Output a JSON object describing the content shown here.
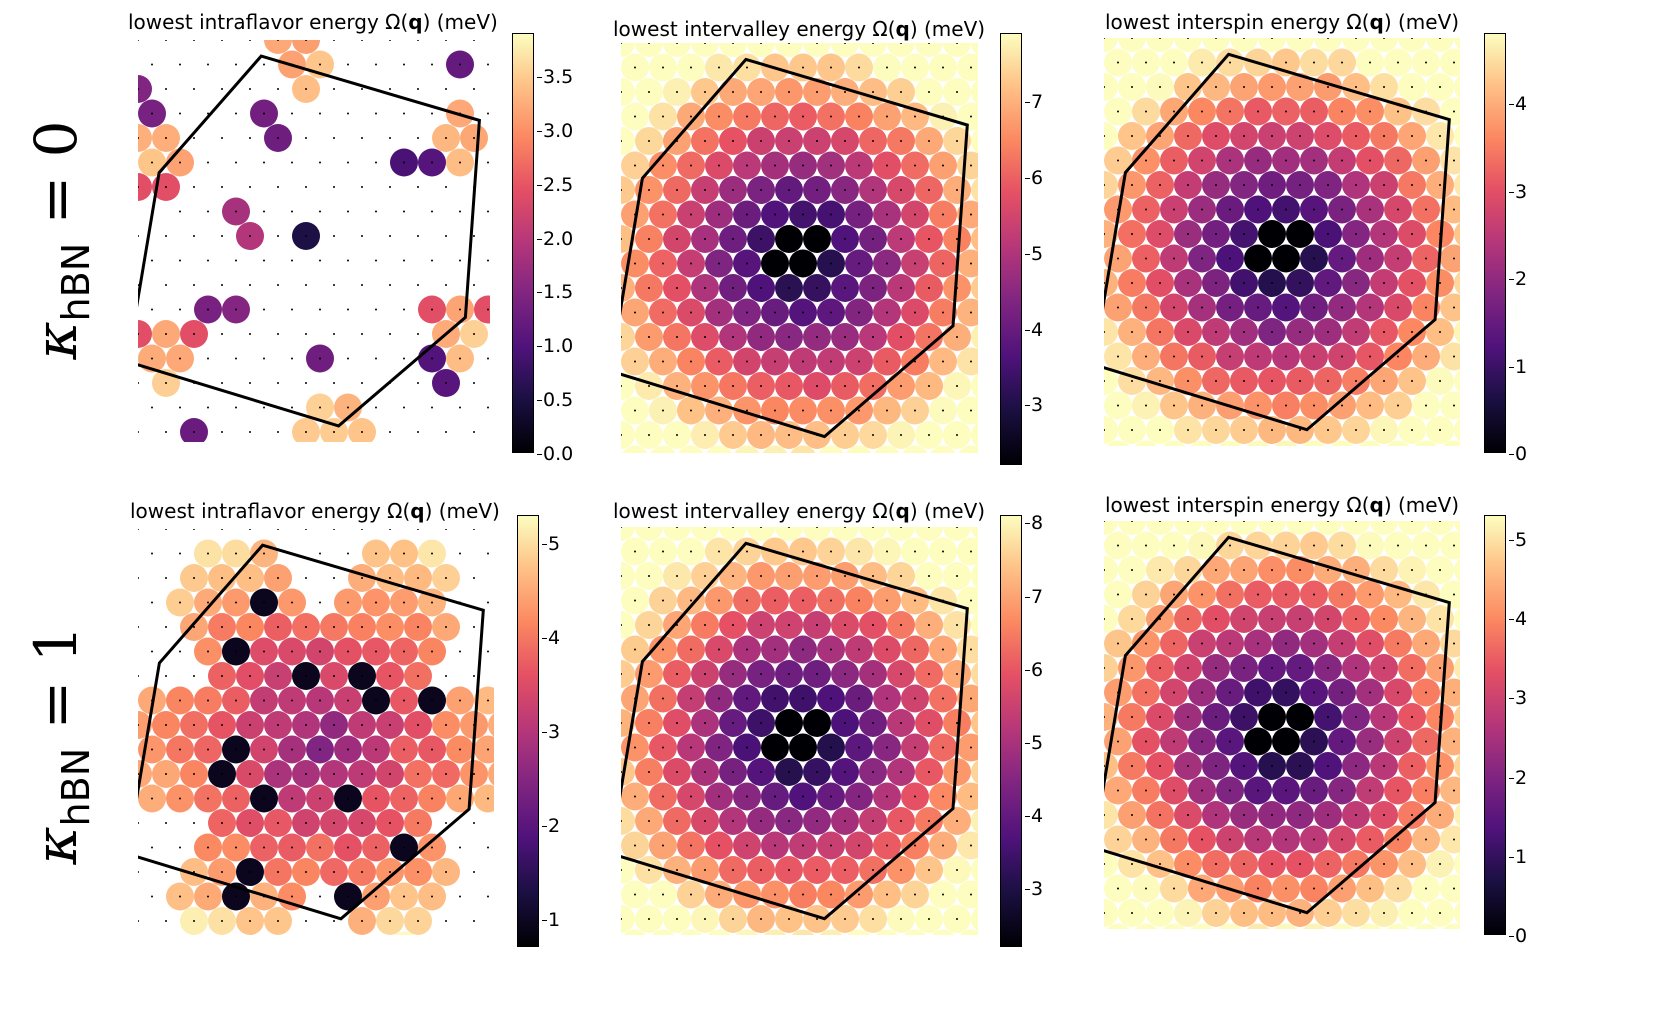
{
  "row_labels": [
    {
      "kappa": "κ",
      "sub": "hBN",
      "eq": " = 0"
    },
    {
      "kappa": "κ",
      "sub": "hBN",
      "eq": " = 1"
    }
  ],
  "title_parts": {
    "pre": "lowest ",
    "mid": " energy Ω(",
    "bold": "q",
    "post": ") (meV)"
  },
  "colormap": "magma",
  "chart_data": [
    {
      "type": "heatmap",
      "row": 0,
      "col": 0,
      "title": "lowest intraflavor energy Ω(q) (meV)",
      "kind": "intraflavor",
      "pattern": "intraflavor-sparse",
      "colorbar": {
        "min": 0.0,
        "max": 3.9,
        "ticks": [
          0.0,
          0.5,
          1.0,
          1.5,
          2.0,
          2.5,
          3.0,
          3.5
        ],
        "tick_labels": [
          "0.0",
          "0.5",
          "1.0",
          "1.5",
          "2.0",
          "2.5",
          "3.0",
          "3.5"
        ]
      }
    },
    {
      "type": "heatmap",
      "row": 0,
      "col": 1,
      "title": "lowest intervalley energy Ω(q) (meV)",
      "kind": "intervalley",
      "pattern": "radial",
      "colorbar": {
        "min": 2.2,
        "max": 7.9,
        "ticks": [
          3,
          4,
          5,
          6,
          7
        ],
        "tick_labels": [
          "3",
          "4",
          "5",
          "6",
          "7"
        ]
      }
    },
    {
      "type": "heatmap",
      "row": 0,
      "col": 2,
      "title": "lowest interspin energy Ω(q) (meV)",
      "kind": "interspin",
      "pattern": "radial",
      "colorbar": {
        "min": 0,
        "max": 4.8,
        "ticks": [
          0,
          1,
          2,
          3,
          4
        ],
        "tick_labels": [
          "0",
          "1",
          "2",
          "3",
          "4"
        ]
      }
    },
    {
      "type": "heatmap",
      "row": 1,
      "col": 0,
      "title": "lowest intraflavor energy Ω(q) (meV)",
      "kind": "intraflavor",
      "pattern": "intraflavor-star",
      "colorbar": {
        "min": 0.7,
        "max": 5.3,
        "ticks": [
          1,
          2,
          3,
          4,
          5
        ],
        "tick_labels": [
          "1",
          "2",
          "3",
          "4",
          "5"
        ]
      }
    },
    {
      "type": "heatmap",
      "row": 1,
      "col": 1,
      "title": "lowest intervalley energy Ω(q) (meV)",
      "kind": "intervalley",
      "pattern": "radial",
      "colorbar": {
        "min": 2.2,
        "max": 8.1,
        "ticks": [
          3,
          4,
          5,
          6,
          7,
          8
        ],
        "tick_labels": [
          "3",
          "4",
          "5",
          "6",
          "7",
          "8"
        ]
      }
    },
    {
      "type": "heatmap",
      "row": 1,
      "col": 2,
      "title": "lowest interspin energy Ω(q) (meV)",
      "kind": "interspin",
      "pattern": "radial",
      "colorbar": {
        "min": 0,
        "max": 5.3,
        "ticks": [
          0,
          1,
          2,
          3,
          4,
          5
        ],
        "tick_labels": [
          "0",
          "1",
          "2",
          "3",
          "4",
          "5"
        ]
      }
    }
  ]
}
